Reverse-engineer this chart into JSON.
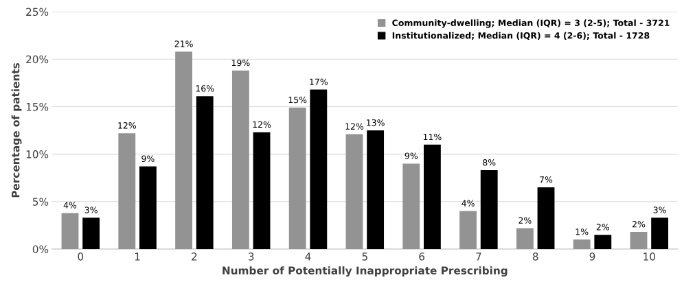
{
  "chart_data": {
    "type": "bar",
    "xlabel": "Number of Potentially Inappropriate Prescribing",
    "ylabel": "Percentage of patients",
    "categories": [
      "0",
      "1",
      "2",
      "3",
      "4",
      "5",
      "6",
      "7",
      "8",
      "9",
      "10"
    ],
    "series": [
      {
        "name": "Community-dwelling; Median (IQR) = 3 (2-5); Total - 3721",
        "color": "#939393",
        "values": [
          3.8,
          12.2,
          20.8,
          18.8,
          14.9,
          12.1,
          9.0,
          4.0,
          2.2,
          1.0,
          1.8
        ],
        "value_labels": [
          "4%",
          "12%",
          "21%",
          "19%",
          "15%",
          "12%",
          "9%",
          "4%",
          "2%",
          "1%",
          "2%"
        ]
      },
      {
        "name": "Institutionalized; Median (IQR) = 4 (2-6); Total - 1728",
        "color": "#000000",
        "values": [
          3.3,
          8.7,
          16.1,
          12.3,
          16.8,
          12.5,
          11.0,
          8.3,
          6.5,
          1.5,
          3.3
        ],
        "value_labels": [
          "3%",
          "9%",
          "16%",
          "12%",
          "17%",
          "13%",
          "11%",
          "8%",
          "7%",
          "2%",
          "3%"
        ]
      }
    ],
    "ylim": [
      0,
      25
    ],
    "yticks": [
      {
        "value": 0,
        "label": "0%"
      },
      {
        "value": 5,
        "label": "5%"
      },
      {
        "value": 10,
        "label": "10%"
      },
      {
        "value": 15,
        "label": "15%"
      },
      {
        "value": 20,
        "label": "20%"
      },
      {
        "value": 25,
        "label": "25%"
      }
    ],
    "grid": "y",
    "legend": "top right"
  }
}
